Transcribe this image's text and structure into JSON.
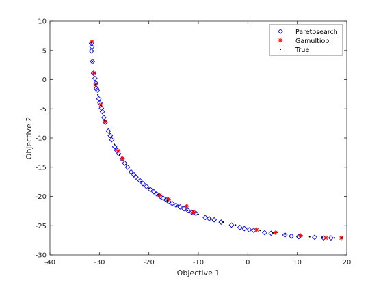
{
  "chart_data": {
    "type": "scatter",
    "xlabel": "Objective 1",
    "ylabel": "Objective 2",
    "xlim": [
      -40,
      20
    ],
    "ylim": [
      -30,
      10
    ],
    "xticks": [
      -40,
      -30,
      -20,
      -10,
      0,
      10,
      20
    ],
    "yticks": [
      -30,
      -25,
      -20,
      -15,
      -10,
      -5,
      0,
      5,
      10
    ],
    "xtick_labels": [
      "-40",
      "-30",
      "-20",
      "-10",
      "0",
      "10",
      "20"
    ],
    "ytick_labels": [
      "-30",
      "-25",
      "-20",
      "-15",
      "-10",
      "-5",
      "0",
      "5",
      "10"
    ],
    "grid": false,
    "legend_position": "top-right",
    "colors": {
      "paretosearch": "#0000ff",
      "gamultiobj": "#ff0000",
      "true": "#000000",
      "axes": "#262626"
    },
    "series": [
      {
        "name": "Paretosearch",
        "marker": "diamond",
        "points": [
          [
            -31.6,
            6.2
          ],
          [
            -31.5,
            5.6
          ],
          [
            -31.6,
            4.9
          ],
          [
            -31.4,
            3.1
          ],
          [
            -31.2,
            1.1
          ],
          [
            -30.9,
            0.2
          ],
          [
            -30.7,
            -0.6
          ],
          [
            -30.6,
            -1.5
          ],
          [
            -30.4,
            -1.8
          ],
          [
            -30.1,
            -3.3
          ],
          [
            -29.9,
            -4.0
          ],
          [
            -29.6,
            -4.9
          ],
          [
            -29.4,
            -5.5
          ],
          [
            -29.1,
            -6.5
          ],
          [
            -28.8,
            -7.3
          ],
          [
            -28.2,
            -8.8
          ],
          [
            -27.8,
            -9.6
          ],
          [
            -27.5,
            -10.3
          ],
          [
            -26.9,
            -11.5
          ],
          [
            -26.5,
            -12.1
          ],
          [
            -26.1,
            -12.7
          ],
          [
            -25.4,
            -13.6
          ],
          [
            -24.9,
            -14.3
          ],
          [
            -24.3,
            -15.0
          ],
          [
            -23.6,
            -15.8
          ],
          [
            -23.1,
            -16.2
          ],
          [
            -22.6,
            -16.7
          ],
          [
            -21.8,
            -17.3
          ],
          [
            -21.2,
            -17.8
          ],
          [
            -20.5,
            -18.3
          ],
          [
            -19.7,
            -18.8
          ],
          [
            -19.0,
            -19.2
          ],
          [
            -18.4,
            -19.6
          ],
          [
            -17.7,
            -20.0
          ],
          [
            -17.1,
            -20.3
          ],
          [
            -16.5,
            -20.6
          ],
          [
            -16.0,
            -20.9
          ],
          [
            -15.3,
            -21.2
          ],
          [
            -14.5,
            -21.5
          ],
          [
            -13.7,
            -21.8
          ],
          [
            -12.9,
            -22.1
          ],
          [
            -12.1,
            -22.4
          ],
          [
            -11.3,
            -22.7
          ],
          [
            -10.5,
            -22.9
          ],
          [
            -8.6,
            -23.6
          ],
          [
            -7.8,
            -23.8
          ],
          [
            -6.8,
            -24.0
          ],
          [
            -5.4,
            -24.4
          ],
          [
            -3.3,
            -24.9
          ],
          [
            -1.6,
            -25.3
          ],
          [
            -0.7,
            -25.5
          ],
          [
            0.3,
            -25.7
          ],
          [
            1.2,
            -25.8
          ],
          [
            3.4,
            -26.2
          ],
          [
            4.7,
            -26.3
          ],
          [
            7.5,
            -26.6
          ],
          [
            8.8,
            -26.8
          ],
          [
            10.3,
            -26.9
          ],
          [
            13.5,
            -27.0
          ],
          [
            15.3,
            -27.1
          ],
          [
            16.8,
            -27.1
          ]
        ]
      },
      {
        "name": "Gamultiobj",
        "marker": "asterisk",
        "points": [
          [
            -31.5,
            6.5
          ],
          [
            -31.1,
            1.1
          ],
          [
            -30.8,
            -0.9
          ],
          [
            -29.7,
            -4.3
          ],
          [
            -28.9,
            -7.2
          ],
          [
            -26.2,
            -12.2
          ],
          [
            -25.3,
            -13.5
          ],
          [
            -17.8,
            -19.8
          ],
          [
            -16.0,
            -20.5
          ],
          [
            -12.4,
            -21.7
          ],
          [
            -11.0,
            -22.7
          ],
          [
            1.8,
            -25.7
          ],
          [
            5.6,
            -26.2
          ],
          [
            10.7,
            -26.7
          ],
          [
            15.8,
            -27.1
          ],
          [
            18.9,
            -27.1
          ]
        ]
      },
      {
        "name": "True",
        "marker": "dot",
        "points": [
          [
            -31.6,
            6.3
          ],
          [
            -31.4,
            3.1
          ],
          [
            -31.1,
            0.9
          ],
          [
            -30.8,
            -0.9
          ],
          [
            -30.3,
            -2.6
          ],
          [
            -29.7,
            -4.4
          ],
          [
            -28.9,
            -7.0
          ],
          [
            -28.0,
            -9.1
          ],
          [
            -27.0,
            -11.1
          ],
          [
            -25.9,
            -12.9
          ],
          [
            -24.6,
            -14.6
          ],
          [
            -23.2,
            -16.1
          ],
          [
            -21.6,
            -17.5
          ],
          [
            -20.0,
            -18.6
          ],
          [
            -18.2,
            -19.7
          ],
          [
            -16.3,
            -20.7
          ],
          [
            -14.3,
            -21.6
          ],
          [
            -12.2,
            -22.4
          ],
          [
            -10.0,
            -23.1
          ],
          [
            -7.5,
            -23.8
          ],
          [
            -5.0,
            -24.4
          ],
          [
            -2.5,
            -24.9
          ],
          [
            0.0,
            -25.4
          ],
          [
            2.5,
            -25.8
          ],
          [
            5.0,
            -26.2
          ],
          [
            7.5,
            -26.5
          ],
          [
            10.0,
            -26.8
          ],
          [
            12.5,
            -26.9
          ],
          [
            15.0,
            -27.0
          ],
          [
            17.5,
            -27.1
          ],
          [
            19.0,
            -27.1
          ]
        ]
      }
    ]
  }
}
